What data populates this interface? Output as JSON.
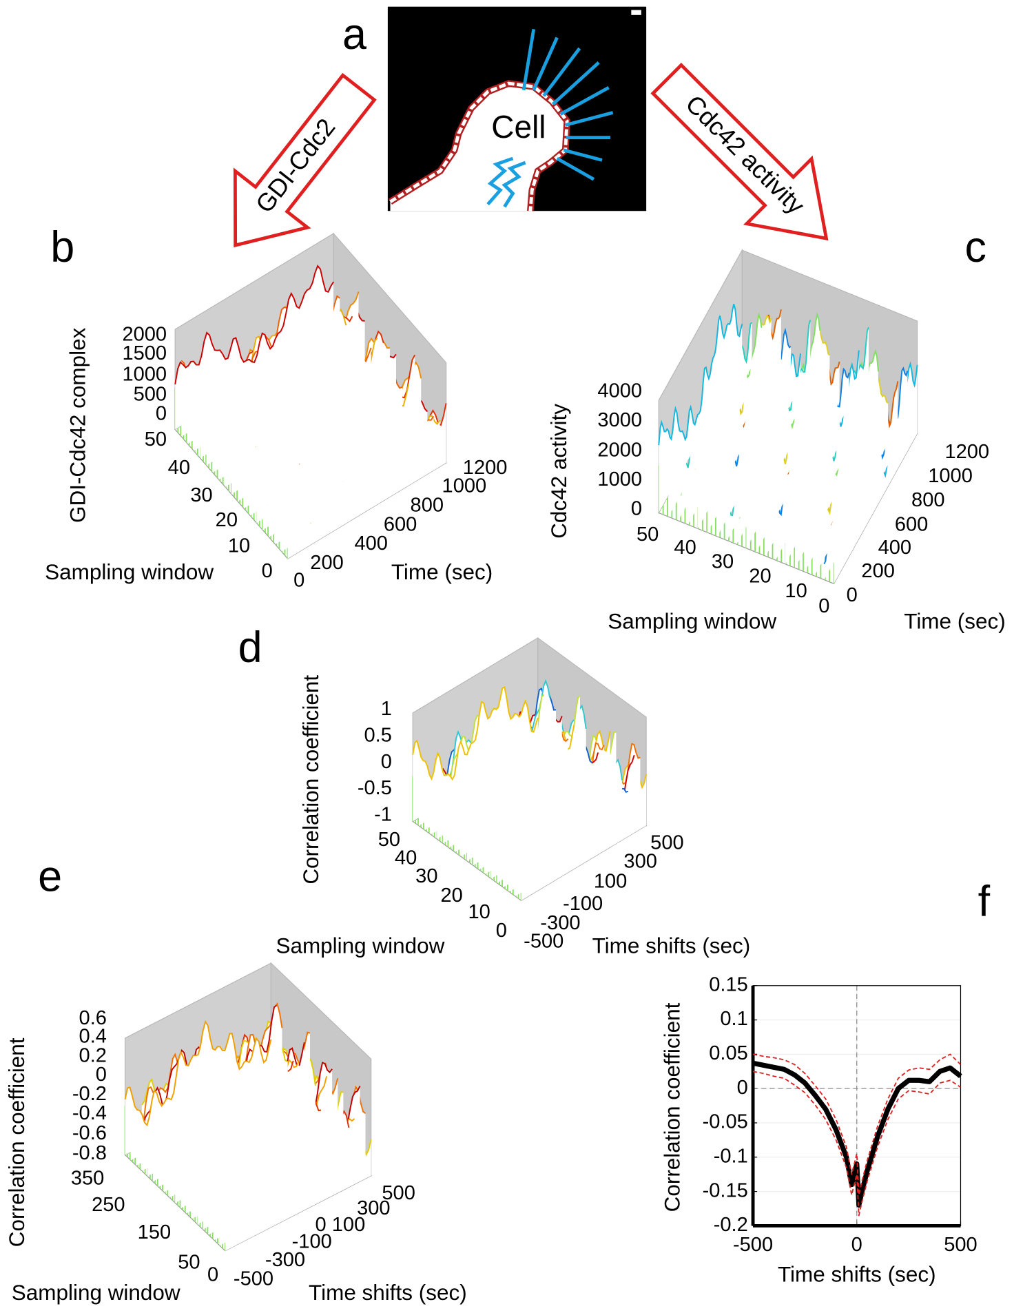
{
  "panels": {
    "a": {
      "label": "a",
      "cell": "Cell",
      "left_arrow": "GDI-Cdc2",
      "right_arrow": "Cdc42 activity"
    },
    "b": {
      "label": "b",
      "z_label": "GDI-Cdc42 complex",
      "z_ticks": [
        2000,
        1500,
        1000,
        500,
        0
      ],
      "x_label": "Sampling window",
      "x_ticks": [
        50,
        40,
        30,
        20,
        10,
        0
      ],
      "y_label": "Time (sec)",
      "y_ticks": [
        0,
        200,
        400,
        600,
        800,
        1000,
        1200
      ]
    },
    "c": {
      "label": "c",
      "z_label": "Cdc42 activity",
      "z_ticks": [
        4000,
        3000,
        2000,
        1000,
        0
      ],
      "x_label": "Sampling window",
      "x_ticks": [
        50,
        40,
        30,
        20,
        10,
        0
      ],
      "y_label": "Time (sec)",
      "y_ticks": [
        0,
        200,
        400,
        600,
        800,
        1000,
        1200
      ]
    },
    "d": {
      "label": "d",
      "z_label": "Correlation coefficient",
      "z_ticks": [
        1,
        0.5,
        0,
        -0.5,
        -1
      ],
      "x_label": "Sampling window",
      "x_ticks": [
        50,
        40,
        30,
        20,
        10,
        0
      ],
      "y_label": "Time shifts (sec)",
      "y_ticks": [
        -500,
        -300,
        -100,
        100,
        300,
        500
      ]
    },
    "e": {
      "label": "e",
      "z_label": "Correlation coefficient",
      "z_ticks": [
        0.6,
        0.4,
        0.2,
        0,
        -0.2,
        -0.4,
        -0.6,
        -0.8
      ],
      "x_label": "Sampling window",
      "x_ticks": [
        350,
        250,
        150,
        50,
        0
      ],
      "y_label": "Time shifts (sec)",
      "y_ticks": [
        -500,
        -300,
        -100,
        0,
        100,
        300,
        500
      ]
    },
    "f": {
      "label": "f"
    }
  },
  "chart_data": {
    "type": "line",
    "x_label": "Time shifts (sec)",
    "y_label": "Correlation coefficient",
    "x": [
      -500,
      -450,
      -400,
      -350,
      -300,
      -250,
      -200,
      -150,
      -100,
      -50,
      -25,
      0,
      10,
      25,
      50,
      100,
      150,
      200,
      250,
      300,
      350,
      400,
      450,
      500
    ],
    "series": [
      {
        "color": "#000000",
        "width": 6,
        "dashed": false,
        "values": [
          0.037,
          0.034,
          0.031,
          0.028,
          0.02,
          0.008,
          -0.01,
          -0.03,
          -0.06,
          -0.1,
          -0.14,
          -0.11,
          -0.17,
          -0.15,
          -0.12,
          -0.07,
          -0.03,
          0.0,
          0.012,
          0.012,
          0.01,
          0.025,
          0.03,
          0.018
        ]
      },
      {
        "color": "#e02020",
        "width": 1.5,
        "dashed": true,
        "values": [
          0.05,
          0.047,
          0.045,
          0.042,
          0.035,
          0.022,
          0.004,
          -0.015,
          -0.045,
          -0.085,
          -0.125,
          -0.095,
          -0.155,
          -0.135,
          -0.105,
          -0.055,
          -0.015,
          0.015,
          0.027,
          0.03,
          0.028,
          0.042,
          0.05,
          0.035
        ]
      },
      {
        "color": "#e02020",
        "width": 1.5,
        "dashed": true,
        "values": [
          0.025,
          0.022,
          0.018,
          0.015,
          0.005,
          -0.006,
          -0.024,
          -0.045,
          -0.075,
          -0.115,
          -0.155,
          -0.125,
          -0.185,
          -0.165,
          -0.135,
          -0.085,
          -0.045,
          -0.015,
          -0.003,
          -0.005,
          -0.008,
          0.008,
          0.012,
          0.002
        ]
      }
    ],
    "xlim": [
      -500,
      500
    ],
    "ylim": [
      -0.2,
      0.15
    ],
    "xticks": [
      -500,
      0,
      500
    ],
    "yticks": [
      -0.2,
      -0.15,
      -0.1,
      -0.05,
      0,
      0.05,
      0.1,
      0.15
    ],
    "grid": true,
    "zero_lines": true
  }
}
